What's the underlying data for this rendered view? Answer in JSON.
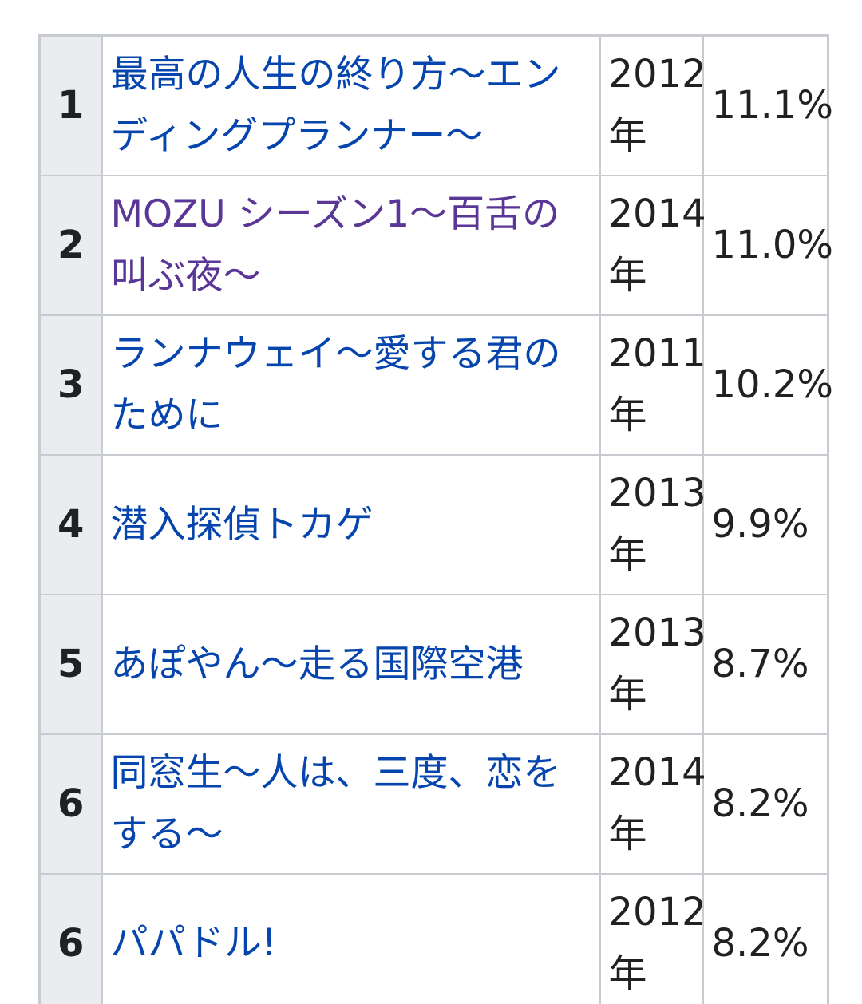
{
  "colors": {
    "link": "#0645ad",
    "visited_link": "#5a3696",
    "rank_cell_bg": "#eaecf0",
    "border": "#c8ccd1",
    "text": "#202122"
  },
  "rows": [
    {
      "rank": "1",
      "title": "最高の人生の終り方〜エンディングプランナー〜",
      "visited": false,
      "year": "2012",
      "year_unit": "年",
      "rating": "11.1%"
    },
    {
      "rank": "2",
      "title": "MOZU シーズン1〜百舌の叫ぶ夜〜",
      "visited": true,
      "year": "2014",
      "year_unit": "年",
      "rating": "11.0%"
    },
    {
      "rank": "3",
      "title": "ランナウェイ〜愛する君のために",
      "visited": false,
      "year": "2011",
      "year_unit": "年",
      "rating": "10.2%"
    },
    {
      "rank": "4",
      "title": "潜入探偵トカゲ",
      "visited": false,
      "year": "2013",
      "year_unit": "年",
      "rating": "9.9%"
    },
    {
      "rank": "5",
      "title": "あぽやん〜走る国際空港",
      "visited": false,
      "year": "2013",
      "year_unit": "年",
      "rating": "8.7%"
    },
    {
      "rank": "6",
      "title": "同窓生〜人は、三度、恋をする〜",
      "visited": false,
      "year": "2014",
      "year_unit": "年",
      "rating": "8.2%"
    },
    {
      "rank": "6",
      "title": "パパドル!",
      "visited": false,
      "year": "2012",
      "year_unit": "年",
      "rating": "8.2%"
    }
  ]
}
